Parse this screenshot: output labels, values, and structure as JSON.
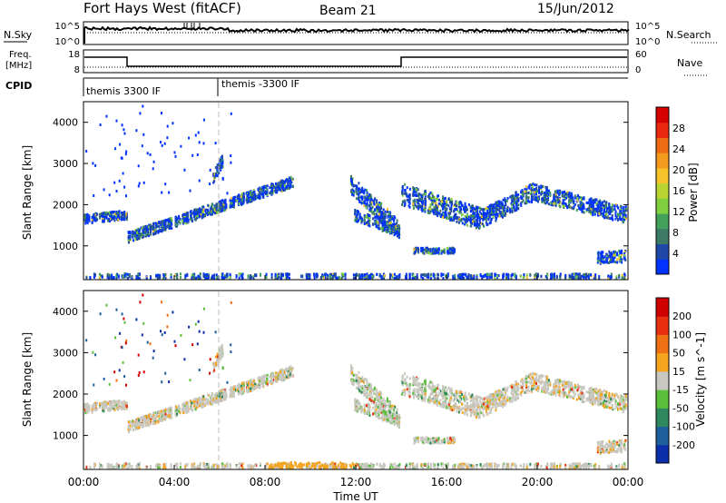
{
  "header": {
    "station": "Fort Hays West (fitACF)",
    "beam": "Beam 21",
    "date": "15/Jun/2012"
  },
  "summary": {
    "nsky_label": "N.Sky",
    "nsearch_label": "N.Search",
    "noise_ticks": [
      "10^5",
      "10^0"
    ],
    "freq_label_1": "Freq.",
    "freq_label_2": "[MHz]",
    "freq_ticks": [
      "18",
      "8"
    ],
    "nave_label": "Nave",
    "nave_ticks": [
      "60",
      "0"
    ],
    "cpid_label": "CPID",
    "cpid_1": "themis 3300 IF",
    "cpid_2": "themis -3300 IF"
  },
  "chart_data": [
    {
      "type": "heatmap",
      "title": "",
      "ylabel": "Slant Range [km]",
      "xlabel": "",
      "ylim": [
        180,
        4500
      ],
      "xlim": [
        0,
        24
      ],
      "yticks": [
        "1000",
        "2000",
        "3000",
        "4000"
      ],
      "colorbar": {
        "label": "Power [dB]",
        "ticks": [
          "4",
          "8",
          "12",
          "16",
          "20",
          "24",
          "28"
        ],
        "colors": [
          "#0033ff",
          "#1f48a8",
          "#3d7a66",
          "#42a05a",
          "#7fcf3f",
          "#b9d430",
          "#f5c22a",
          "#f49a1e",
          "#f06a15",
          "#e8270e",
          "#d40000"
        ]
      }
    },
    {
      "type": "heatmap",
      "title": "",
      "ylabel": "Slant Range [km]",
      "xlabel": "Time UT",
      "ylim": [
        180,
        4500
      ],
      "xlim": [
        0,
        24
      ],
      "yticks": [
        "1000",
        "2000",
        "3000",
        "4000"
      ],
      "xticks": [
        "00:00",
        "04:00",
        "08:00",
        "12:00",
        "16:00",
        "20:00",
        "00:00"
      ],
      "colorbar": {
        "label": "Velocity [m s^-1]",
        "ticks": [
          "200",
          "100",
          "50",
          "15",
          "-15",
          "-50",
          "-100",
          "-200"
        ],
        "colors": [
          "#0a2fa8",
          "#1f5f9c",
          "#2e8a5e",
          "#5cbf3c",
          "#c8c8c0",
          "#f5a41e",
          "#f07014",
          "#e83010",
          "#d00000"
        ]
      }
    }
  ]
}
